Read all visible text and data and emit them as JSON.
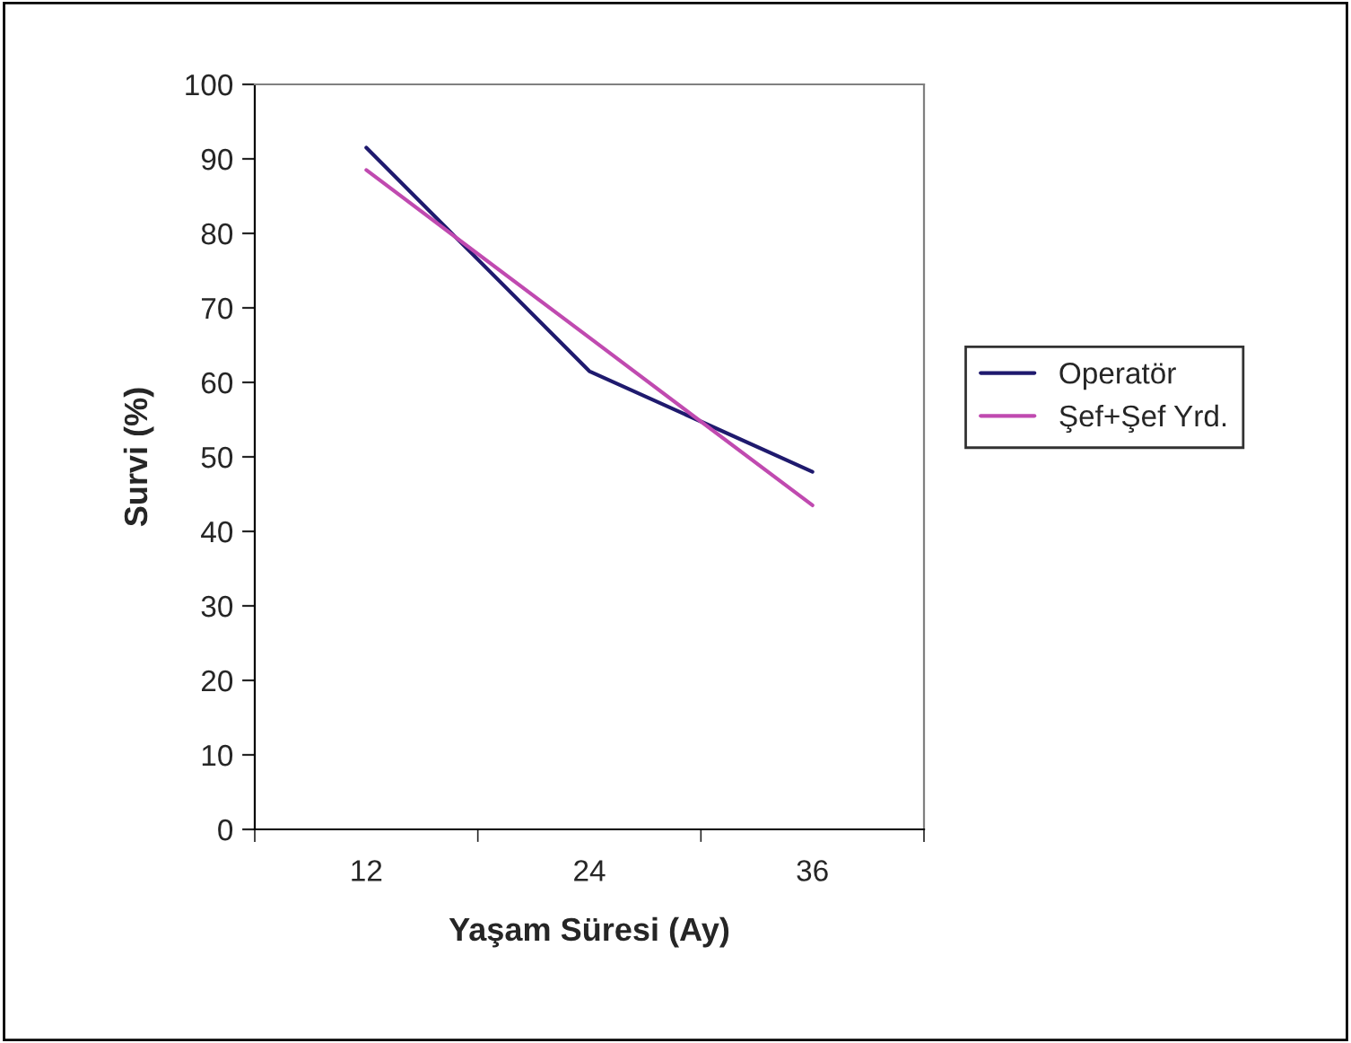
{
  "chart_data": {
    "type": "line",
    "xlabel": "Yaşam Süresi (Ay)",
    "ylabel": "Survi (%)",
    "categories": [
      "12",
      "24",
      "36"
    ],
    "series": [
      {
        "name": "Operatör",
        "color": "#1f1a6e",
        "values": [
          91.5,
          61.5,
          48
        ]
      },
      {
        "name": "Şef+Şef Yrd.",
        "color": "#c04ab0",
        "values": [
          88.5,
          66,
          43.5
        ]
      }
    ],
    "ylim": [
      0,
      100
    ],
    "yticks": [
      0,
      10,
      20,
      30,
      40,
      50,
      60,
      70,
      80,
      90,
      100
    ],
    "grid": false,
    "legend": "right",
    "marker": "none",
    "line_style": "solid"
  }
}
